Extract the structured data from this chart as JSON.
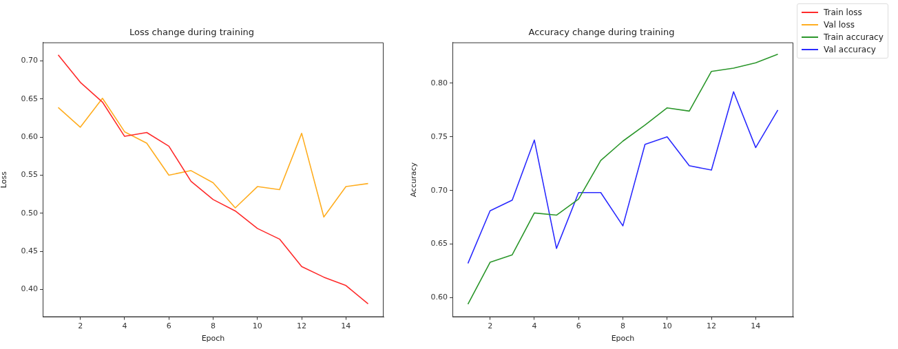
{
  "chart_data": [
    {
      "type": "line",
      "title": "Loss change during training",
      "xlabel": "Epoch",
      "ylabel": "Loss",
      "x": [
        1,
        2,
        3,
        4,
        5,
        6,
        7,
        8,
        9,
        10,
        11,
        12,
        13,
        14,
        15
      ],
      "series": [
        {
          "name": "Train loss",
          "color": "#ff2a2a",
          "values": [
            0.708,
            0.672,
            0.646,
            0.601,
            0.606,
            0.588,
            0.542,
            0.518,
            0.503,
            0.48,
            0.466,
            0.43,
            0.416,
            0.405,
            0.381
          ]
        },
        {
          "name": "Val loss",
          "color": "#ffad1f",
          "values": [
            0.639,
            0.613,
            0.651,
            0.607,
            0.592,
            0.55,
            0.556,
            0.54,
            0.507,
            0.535,
            0.531,
            0.605,
            0.495,
            0.535,
            0.539
          ]
        }
      ],
      "xlim": [
        0.3,
        15.7
      ],
      "xticks": [
        2,
        4,
        6,
        8,
        10,
        12,
        14
      ],
      "ylim": [
        0.3636,
        0.7244
      ],
      "yticks": [
        {
          "value": 0.4,
          "label": "0.40"
        },
        {
          "value": 0.45,
          "label": "0.45"
        },
        {
          "value": 0.5,
          "label": "0.50"
        },
        {
          "value": 0.55,
          "label": "0.55"
        },
        {
          "value": 0.6,
          "label": "0.60"
        },
        {
          "value": 0.65,
          "label": "0.65"
        },
        {
          "value": 0.7,
          "label": "0.70"
        }
      ],
      "grid": false,
      "legend": "top right",
      "marker": "none",
      "line_style": "solid"
    },
    {
      "type": "line",
      "title": "Accuracy change during training",
      "xlabel": "Epoch",
      "ylabel": "Accuracy",
      "x": [
        1,
        2,
        3,
        4,
        5,
        6,
        7,
        8,
        9,
        10,
        11,
        12,
        13,
        14,
        15
      ],
      "series": [
        {
          "name": "Train accuracy",
          "color": "#2a962a",
          "values": [
            0.594,
            0.633,
            0.64,
            0.679,
            0.677,
            0.692,
            0.728,
            0.746,
            0.761,
            0.777,
            0.774,
            0.811,
            0.814,
            0.819,
            0.827
          ]
        },
        {
          "name": "Val accuracy",
          "color": "#2a2aff",
          "values": [
            0.632,
            0.681,
            0.691,
            0.747,
            0.646,
            0.698,
            0.698,
            0.667,
            0.743,
            0.75,
            0.723,
            0.719,
            0.792,
            0.74,
            0.775
          ]
        }
      ],
      "xlim": [
        0.3,
        15.7
      ],
      "xticks": [
        2,
        4,
        6,
        8,
        10,
        12,
        14
      ],
      "ylim": [
        0.582,
        0.838
      ],
      "yticks": [
        {
          "value": 0.6,
          "label": "0.60"
        },
        {
          "value": 0.65,
          "label": "0.65"
        },
        {
          "value": 0.7,
          "label": "0.70"
        },
        {
          "value": 0.75,
          "label": "0.75"
        },
        {
          "value": 0.8,
          "label": "0.80"
        }
      ],
      "grid": false,
      "legend": "top right",
      "marker": "none",
      "line_style": "solid"
    }
  ]
}
